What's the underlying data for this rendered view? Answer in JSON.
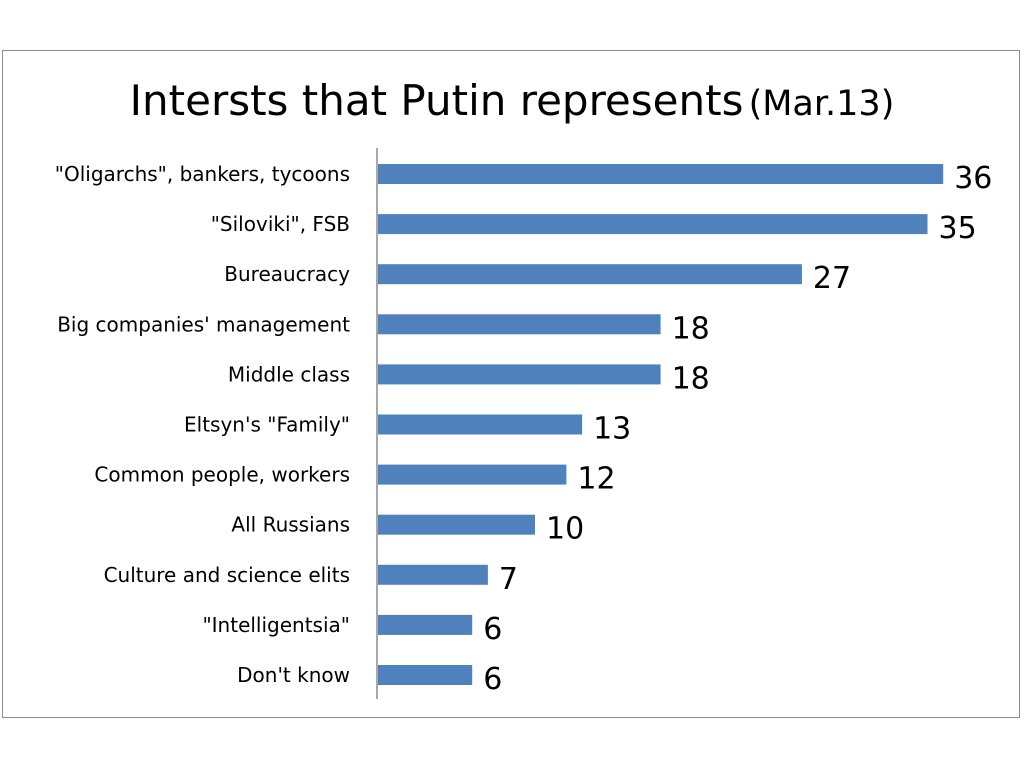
{
  "chart_data": {
    "type": "bar",
    "orientation": "horizontal",
    "title": "Intersts that Putin represents",
    "subtitle": "(Mar.13)",
    "categories": [
      "\"Oligarchs\", bankers, tycoons",
      "\"Siloviki\", FSB",
      "Bureaucracy",
      "Big companies' management",
      "Middle class",
      "Eltsyn's \"Family\"",
      "Common people, workers",
      "All Russians",
      "Culture and science elits",
      "\"Intelligentsia\"",
      "Don't know"
    ],
    "values": [
      36,
      35,
      27,
      18,
      18,
      13,
      12,
      10,
      7,
      6,
      6
    ],
    "xlim": [
      0,
      40
    ],
    "grid": false,
    "legend": "none",
    "bar_color": "#4f81bd",
    "data_labels": true
  }
}
